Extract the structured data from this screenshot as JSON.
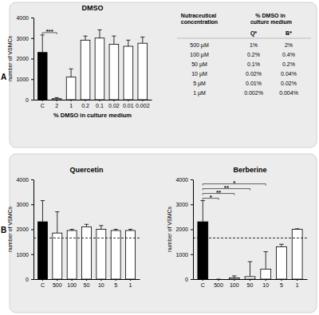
{
  "panels": [
    "A",
    "B"
  ],
  "chart_data": [
    {
      "type": "bar",
      "title": "DMSO",
      "x_label": "% DMSO in culture medium",
      "y_label": "number of VSMCs",
      "categories": [
        "C",
        "2",
        "1",
        "0.2",
        "0.1",
        "0.02",
        "0.01",
        "0.002"
      ],
      "values": [
        2300,
        50,
        1100,
        2900,
        3000,
        2700,
        2600,
        2750
      ],
      "errors": [
        850,
        50,
        400,
        200,
        400,
        400,
        300,
        300
      ],
      "colors": [
        "#000000",
        "#ffffff",
        "#ffffff",
        "#ffffff",
        "#ffffff",
        "#ffffff",
        "#ffffff",
        "#ffffff"
      ],
      "ylim": [
        0,
        4000
      ],
      "yticks": [
        0,
        1000,
        2000,
        3000,
        4000
      ],
      "annotations": [
        {
          "text": "***",
          "from": "C",
          "to": "2"
        }
      ]
    },
    {
      "type": "bar",
      "title": "Quercetin",
      "y_label": "number of VSMCs",
      "categories": [
        "C",
        "500",
        "100",
        "50",
        "10",
        "5",
        "1"
      ],
      "values": [
        2300,
        1850,
        1950,
        2100,
        2000,
        1950,
        1950
      ],
      "errors": [
        850,
        850,
        50,
        100,
        150,
        50,
        50
      ],
      "colors": [
        "#000000",
        "#ffffff",
        "#ffffff",
        "#ffffff",
        "#ffffff",
        "#ffffff",
        "#ffffff"
      ],
      "ylim": [
        0,
        4000
      ],
      "yticks": [
        0,
        1000,
        2000,
        3000,
        4000
      ],
      "threshold": 1650
    },
    {
      "type": "bar",
      "title": "Berberine",
      "y_label": "number of VSMCs",
      "categories": [
        "C",
        "500",
        "100",
        "50",
        "10",
        "5",
        "1"
      ],
      "values": [
        2300,
        0,
        50,
        100,
        400,
        1300,
        2000
      ],
      "errors": [
        850,
        0,
        80,
        600,
        700,
        100,
        20
      ],
      "colors": [
        "#000000",
        "#ffffff",
        "#ffffff",
        "#ffffff",
        "#ffffff",
        "#ffffff",
        "#ffffff"
      ],
      "ylim": [
        0,
        4000
      ],
      "yticks": [
        0,
        1000,
        2000,
        3000,
        4000
      ],
      "threshold": 1650,
      "annotations": [
        {
          "text": "*",
          "from": "C",
          "to": "500"
        },
        {
          "text": "**",
          "from": "C",
          "to": "100"
        },
        {
          "text": "**",
          "from": "C",
          "to": "50"
        },
        {
          "text": "*",
          "from": "C",
          "to": "10"
        }
      ]
    }
  ],
  "table": {
    "header": [
      "Nutraceutical concentration",
      "% DMSO in culture medium"
    ],
    "subheader": [
      "Q*",
      "B*"
    ],
    "rows": [
      [
        "500 µM",
        "1%",
        "2%"
      ],
      [
        "100 µM",
        "0.2%",
        "0.4%"
      ],
      [
        "50 µM",
        "0.1%",
        "0.2%"
      ],
      [
        "10 µM",
        "0.02%",
        "0.04%"
      ],
      [
        "5 µM",
        "0.01%",
        "0.02%"
      ],
      [
        "1 µM",
        "0.002%",
        "0.004%"
      ]
    ]
  }
}
